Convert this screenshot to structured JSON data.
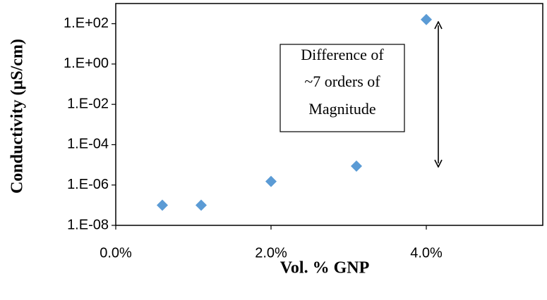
{
  "chart_data": {
    "type": "scatter",
    "x_label": "Vol. % GNP",
    "y_label": "Conductivity (µS/cm)",
    "annotation": [
      "Difference of",
      "~7 orders of",
      "Magnitude"
    ],
    "x": [
      0.6,
      1.1,
      2.0,
      3.1,
      4.0
    ],
    "values": [
      1e-07,
      1e-07,
      1.5e-06,
      8.7e-06,
      160
    ],
    "color": "#5b9bd5",
    "yscale": "log",
    "xlim": [
      0,
      5.5
    ],
    "ylim": [
      1e-08,
      1000
    ],
    "xticks": [
      {
        "value": 0,
        "label": "0.0%"
      },
      {
        "value": 2,
        "label": "2.0%"
      },
      {
        "value": 4,
        "label": "4.0%"
      }
    ],
    "yticks": [
      {
        "value": 1e-08,
        "label": "1.E-08"
      },
      {
        "value": 1e-06,
        "label": "1.E-06"
      },
      {
        "value": 0.0001,
        "label": "1.E-04"
      },
      {
        "value": 0.01,
        "label": "1.E-02"
      },
      {
        "value": 1,
        "label": "1.E+00"
      },
      {
        "value": 100,
        "label": "1.E+02"
      }
    ]
  }
}
